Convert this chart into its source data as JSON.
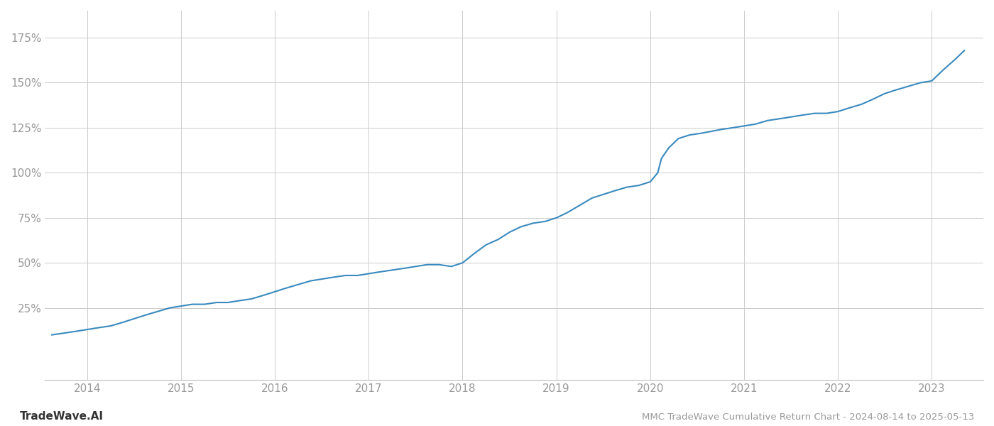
{
  "title": "MMC TradeWave Cumulative Return Chart - 2024-08-14 to 2025-05-13",
  "watermark": "TradeWave.AI",
  "line_color": "#3a8abf",
  "background_color": "#ffffff",
  "grid_color": "#cccccc",
  "axis_label_color": "#999999",
  "title_color": "#999999",
  "watermark_color": "#333333",
  "x_ticks": [
    2014,
    2015,
    2016,
    2017,
    2018,
    2019,
    2020,
    2021,
    2022,
    2023
  ],
  "y_ticks": [
    25,
    50,
    75,
    100,
    125,
    150,
    175
  ],
  "xlim": [
    2013.55,
    2023.55
  ],
  "ylim": [
    -15,
    190
  ],
  "x_data": [
    2013.62,
    2013.75,
    2013.88,
    2014.0,
    2014.12,
    2014.25,
    2014.38,
    2014.5,
    2014.62,
    2014.75,
    2014.88,
    2015.0,
    2015.12,
    2015.25,
    2015.38,
    2015.5,
    2015.62,
    2015.75,
    2015.88,
    2016.0,
    2016.12,
    2016.25,
    2016.38,
    2016.5,
    2016.62,
    2016.75,
    2016.88,
    2017.0,
    2017.12,
    2017.25,
    2017.38,
    2017.5,
    2017.62,
    2017.75,
    2017.88,
    2018.0,
    2018.12,
    2018.25,
    2018.38,
    2018.5,
    2018.62,
    2018.75,
    2018.88,
    2019.0,
    2019.12,
    2019.25,
    2019.38,
    2019.5,
    2019.62,
    2019.75,
    2019.88,
    2020.0,
    2020.08,
    2020.12,
    2020.2,
    2020.3,
    2020.42,
    2020.55,
    2020.65,
    2020.75,
    2020.88,
    2021.0,
    2021.12,
    2021.25,
    2021.38,
    2021.5,
    2021.62,
    2021.75,
    2021.88,
    2022.0,
    2022.12,
    2022.25,
    2022.38,
    2022.5,
    2022.62,
    2022.75,
    2022.88,
    2023.0,
    2023.12,
    2023.25,
    2023.35
  ],
  "y_data": [
    10,
    11,
    12,
    13,
    14,
    15,
    17,
    19,
    21,
    23,
    25,
    26,
    27,
    27,
    28,
    28,
    29,
    30,
    32,
    34,
    36,
    38,
    40,
    41,
    42,
    43,
    43,
    44,
    45,
    46,
    47,
    48,
    49,
    49,
    48,
    50,
    55,
    60,
    63,
    67,
    70,
    72,
    73,
    75,
    78,
    82,
    86,
    88,
    90,
    92,
    93,
    95,
    100,
    108,
    114,
    119,
    121,
    122,
    123,
    124,
    125,
    126,
    127,
    129,
    130,
    131,
    132,
    133,
    133,
    134,
    136,
    138,
    141,
    144,
    146,
    148,
    150,
    151,
    157,
    163,
    168
  ],
  "line_width": 1.5,
  "figsize": [
    14.0,
    6.0
  ],
  "dpi": 100
}
